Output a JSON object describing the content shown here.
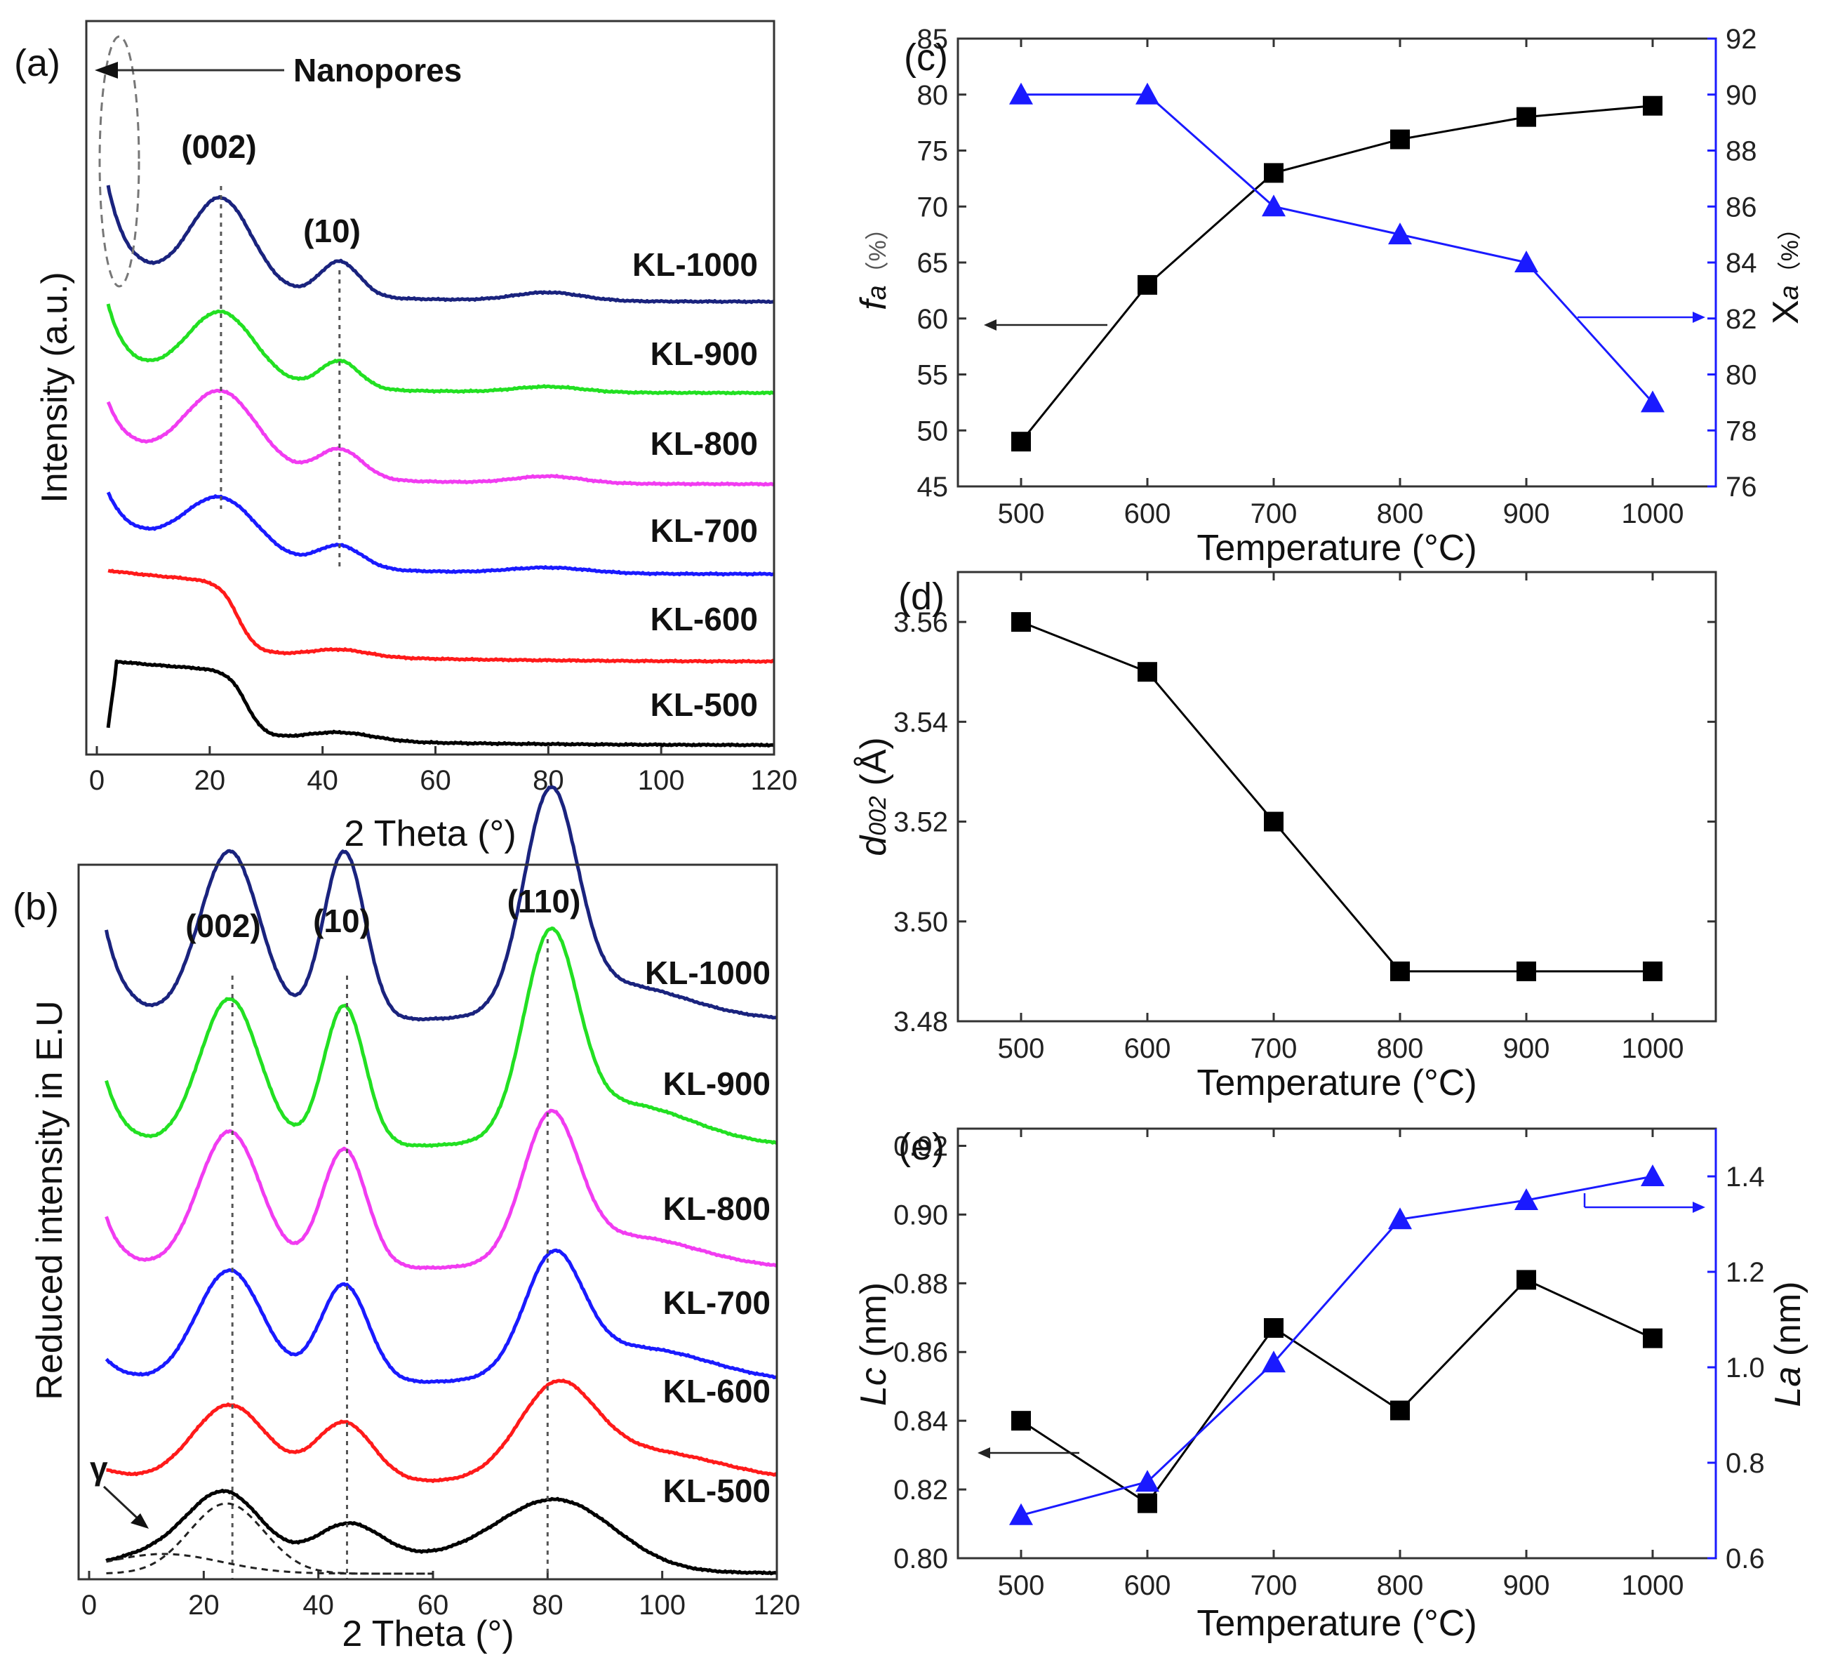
{
  "chart_data": [
    {
      "id": "a",
      "panel_label": "(a)",
      "type": "line",
      "xlabel": "2 Theta (°)",
      "ylabel": "Intensity (a.u.)",
      "xlim": [
        0,
        120
      ],
      "xticks": [
        "0",
        "20",
        "40",
        "60",
        "80",
        "100",
        "120"
      ],
      "annotations": {
        "nanopores": "Nanopores",
        "peak_002": "(002)",
        "peak_10": "(10)"
      },
      "peak_positions": [
        22,
        43
      ],
      "series": [
        {
          "name": "KL-1000",
          "color": "#1a237e"
        },
        {
          "name": "KL-900",
          "color": "#22e022"
        },
        {
          "name": "KL-800",
          "color": "#f13cf1"
        },
        {
          "name": "KL-700",
          "color": "#1a1aff"
        },
        {
          "name": "KL-600",
          "color": "#ff1a1a"
        },
        {
          "name": "KL-500",
          "color": "#000000"
        }
      ]
    },
    {
      "id": "b",
      "panel_label": "(b)",
      "type": "line",
      "xlabel": "2 Theta (°)",
      "ylabel": "Reduced intensity in E.U",
      "xlim": [
        0,
        120
      ],
      "xticks": [
        "0",
        "20",
        "40",
        "60",
        "80",
        "100",
        "120"
      ],
      "annotations": {
        "peak_002": "(002)",
        "peak_10": "(10)",
        "peak_110": "(110)",
        "gamma": "γ"
      },
      "peak_positions": [
        25,
        45,
        80
      ],
      "series": [
        {
          "name": "KL-1000",
          "color": "#1a237e"
        },
        {
          "name": "KL-900",
          "color": "#22e022"
        },
        {
          "name": "KL-800",
          "color": "#f13cf1"
        },
        {
          "name": "KL-700",
          "color": "#1a1aff"
        },
        {
          "name": "KL-600",
          "color": "#ff1a1a"
        },
        {
          "name": "KL-500",
          "color": "#000000"
        }
      ]
    },
    {
      "id": "c",
      "panel_label": "(c)",
      "type": "line",
      "xlabel": "Temperature (°C)",
      "ylabel_left": "fa (%)",
      "ylabel_left_main": "f",
      "ylabel_left_sub": "a",
      "ylabel_left_unit": "（%）",
      "ylabel_right": "Xa (%)",
      "ylabel_right_main": "X",
      "ylabel_right_sub": "a",
      "ylabel_right_unit": "（%）",
      "x": [
        500,
        600,
        700,
        800,
        900,
        1000
      ],
      "xticks": [
        "500",
        "600",
        "700",
        "800",
        "900",
        "1000"
      ],
      "ylim_left": [
        45,
        85
      ],
      "yticks_left": [
        "45",
        "50",
        "55",
        "60",
        "65",
        "70",
        "75",
        "80",
        "85"
      ],
      "ylim_right": [
        76,
        92
      ],
      "yticks_right": [
        "76",
        "78",
        "80",
        "82",
        "84",
        "86",
        "88",
        "90",
        "92"
      ],
      "series": [
        {
          "name": "fa",
          "axis": "left",
          "marker": "square",
          "color": "#000000",
          "values": [
            49,
            63,
            73,
            76,
            78,
            79
          ]
        },
        {
          "name": "Xa",
          "axis": "right",
          "marker": "triangle",
          "color": "#1a1aff",
          "values": [
            90,
            90,
            86,
            85,
            84,
            79
          ]
        }
      ]
    },
    {
      "id": "d",
      "panel_label": "(d)",
      "type": "line",
      "xlabel": "Temperature (°C)",
      "ylabel": "d002 (Å)",
      "ylabel_main": "d",
      "ylabel_sub": "002",
      "ylabel_unit": " (Å)",
      "x": [
        500,
        600,
        700,
        800,
        900,
        1000
      ],
      "xticks": [
        "500",
        "600",
        "700",
        "800",
        "900",
        "1000"
      ],
      "ylim": [
        3.48,
        3.57
      ],
      "yticks": [
        "3.48",
        "3.50",
        "3.52",
        "3.54",
        "3.56"
      ],
      "series": [
        {
          "name": "d002",
          "marker": "square",
          "color": "#000000",
          "values": [
            3.56,
            3.55,
            3.52,
            3.49,
            3.49,
            3.49
          ]
        }
      ]
    },
    {
      "id": "e",
      "panel_label": "(e)",
      "type": "line",
      "xlabel": "Temperature (°C)",
      "ylabel_left": "Lc (nm)",
      "ylabel_left_main": "Lc",
      "ylabel_left_unit": " (nm)",
      "ylabel_right": "La (nm)",
      "ylabel_right_main": "La",
      "ylabel_right_unit": " (nm)",
      "x": [
        500,
        600,
        700,
        800,
        900,
        1000
      ],
      "xticks": [
        "500",
        "600",
        "700",
        "800",
        "900",
        "1000"
      ],
      "ylim_left": [
        0.8,
        0.925
      ],
      "yticks_left": [
        "0.80",
        "0.82",
        "0.84",
        "0.86",
        "0.88",
        "0.90",
        "0.92"
      ],
      "ylim_right": [
        0.6,
        1.5
      ],
      "yticks_right": [
        "0.6",
        "0.8",
        "1.0",
        "1.2",
        "1.4"
      ],
      "series": [
        {
          "name": "Lc",
          "axis": "left",
          "marker": "square",
          "color": "#000000",
          "values": [
            0.84,
            0.816,
            0.867,
            0.843,
            0.881,
            0.864
          ]
        },
        {
          "name": "La",
          "axis": "right",
          "marker": "triangle",
          "color": "#1a1aff",
          "values": [
            0.69,
            0.76,
            1.01,
            1.31,
            1.35,
            1.4
          ]
        }
      ]
    }
  ]
}
